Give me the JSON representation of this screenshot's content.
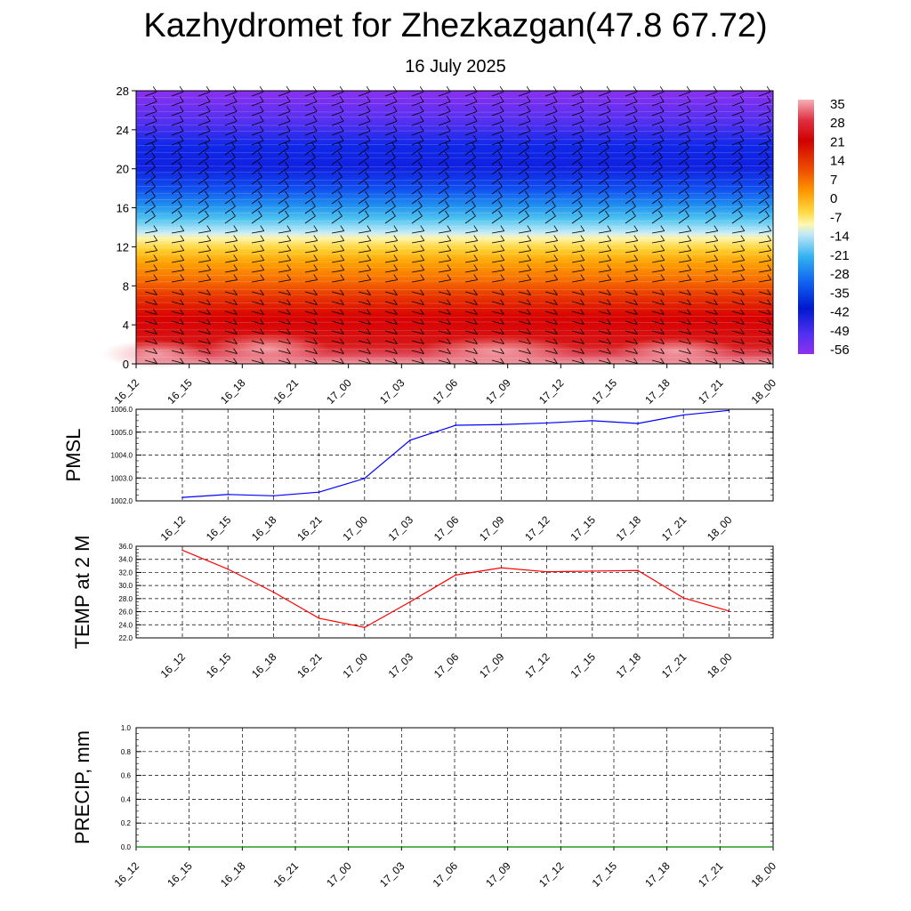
{
  "header": {
    "title": "Kazhydromet for Zhezkazgan(47.8 67.72)",
    "subtitle": "16 July 2025"
  },
  "chart_data": [
    {
      "type": "heatmap",
      "title": "",
      "ylabel": "",
      "ylim": [
        0,
        28
      ],
      "y_ticks": [
        0,
        4,
        8,
        12,
        16,
        20,
        24,
        28
      ],
      "x_tick_labels": [
        "16_12",
        "16_15",
        "16_18",
        "16_21",
        "17_00",
        "17_03",
        "17_06",
        "17_09",
        "17_12",
        "17_15",
        "17_18",
        "17_21",
        "18_00"
      ],
      "colorbar_labels": [
        "35",
        "28",
        "21",
        "14",
        "7",
        "0",
        "-7",
        "-14",
        "-21",
        "-28",
        "-35",
        "-42",
        "-49",
        "-56"
      ],
      "colors": [
        "#f5a0a8",
        "#e8303c",
        "#d40000",
        "#ee5000",
        "#ff9000",
        "#ffd020",
        "#fff8a0",
        "#a8e4f8",
        "#28b0f0",
        "#1060f0",
        "#0010d0",
        "#5030f0",
        "#9030f0"
      ],
      "wind_barbs": "shown"
    },
    {
      "type": "line",
      "ylabel": "PMSL",
      "ylim": [
        1002.0,
        1006.0
      ],
      "y_ticks": [
        "1002.0",
        "1003.0",
        "1004.0",
        "1005.0",
        "1006.0"
      ],
      "x": [
        "16_12",
        "16_15",
        "16_18",
        "16_21",
        "17_00",
        "17_03",
        "17_06",
        "17_09",
        "17_12",
        "17_15",
        "17_18",
        "17_21",
        "18_00"
      ],
      "series": [
        {
          "values": [
            1002.15,
            1002.28,
            1002.22,
            1002.38,
            1002.98,
            1004.65,
            1005.3,
            1005.33,
            1005.4,
            1005.5,
            1005.38,
            1005.75,
            1005.95
          ],
          "color": "#0000ff"
        }
      ],
      "grid": true
    },
    {
      "type": "line",
      "ylabel": "TEMP at 2 M",
      "ylim": [
        22.0,
        36.0
      ],
      "y_ticks": [
        "22.0",
        "24.0",
        "26.0",
        "28.0",
        "30.0",
        "32.0",
        "34.0",
        "36.0"
      ],
      "x": [
        "16_12",
        "16_15",
        "16_18",
        "16_21",
        "17_00",
        "17_03",
        "17_06",
        "17_09",
        "17_12",
        "17_15",
        "17_18",
        "17_21",
        "18_00"
      ],
      "series": [
        {
          "values": [
            35.4,
            32.5,
            29.0,
            25.0,
            23.6,
            27.5,
            31.6,
            32.7,
            32.1,
            32.2,
            32.3,
            28.1,
            26.1
          ],
          "color": "#ff0000"
        }
      ],
      "grid": true
    },
    {
      "type": "line",
      "ylabel": "PRECIP, mm",
      "ylim": [
        0.0,
        1.0
      ],
      "y_ticks": [
        "0.0",
        "0.2",
        "0.4",
        "0.6",
        "0.8",
        "1.0"
      ],
      "x": [
        "16_12",
        "16_15",
        "16_18",
        "16_21",
        "17_00",
        "17_03",
        "17_06",
        "17_09",
        "17_12",
        "17_15",
        "17_18",
        "17_21",
        "18_00"
      ],
      "series": [
        {
          "values": [
            0,
            0,
            0,
            0,
            0,
            0,
            0,
            0,
            0,
            0,
            0,
            0,
            0
          ],
          "color": "#008000"
        }
      ],
      "grid": true
    }
  ]
}
